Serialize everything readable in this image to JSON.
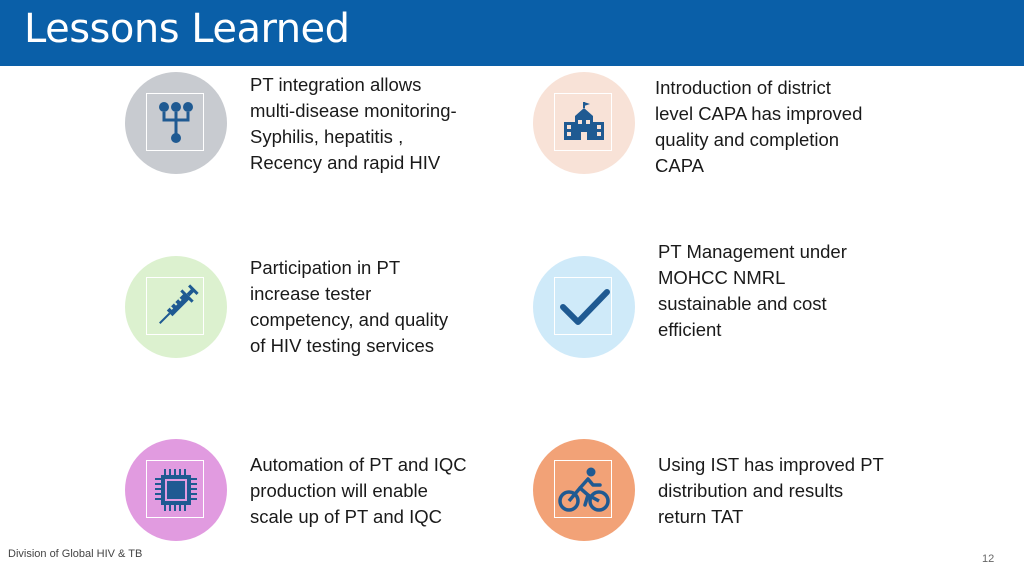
{
  "slide": {
    "title": "Lessons Learned",
    "footer": "Division of Global HIV & TB",
    "page_number": "12"
  },
  "colors": {
    "title_bar": "#0a5fa8",
    "icon_dark": "#1f5a92",
    "circle_gray": "#c8cbd0",
    "circle_peach": "#f8e2d7",
    "circle_green": "#dcf1cf",
    "circle_lightblue": "#cfeaf9",
    "circle_purple": "#e19be0",
    "circle_orange": "#f2a277"
  },
  "items": [
    {
      "icon": "hierarchy-icon",
      "text": "PT integration allows\nmulti-disease monitoring-\nSyphilis, hepatitis ,\nRecency and rapid HIV"
    },
    {
      "icon": "school-building-icon",
      "text": "Introduction of district\nlevel CAPA has improved\nquality and completion\nCAPA"
    },
    {
      "icon": "syringe-icon",
      "text": "Participation in PT\nincrease tester\ncompetency, and quality\nof HIV testing services"
    },
    {
      "icon": "checkmark-icon",
      "text": "PT Management under\nMOHCC NMRL\nsustainable and cost\nefficient"
    },
    {
      "icon": "processor-chip-icon",
      "text": "Automation of  PT and IQC\nproduction  will enable\nscale up of PT and IQC"
    },
    {
      "icon": "cyclist-icon",
      "text": "Using IST has improved PT\ndistribution and results\nreturn TAT"
    }
  ]
}
